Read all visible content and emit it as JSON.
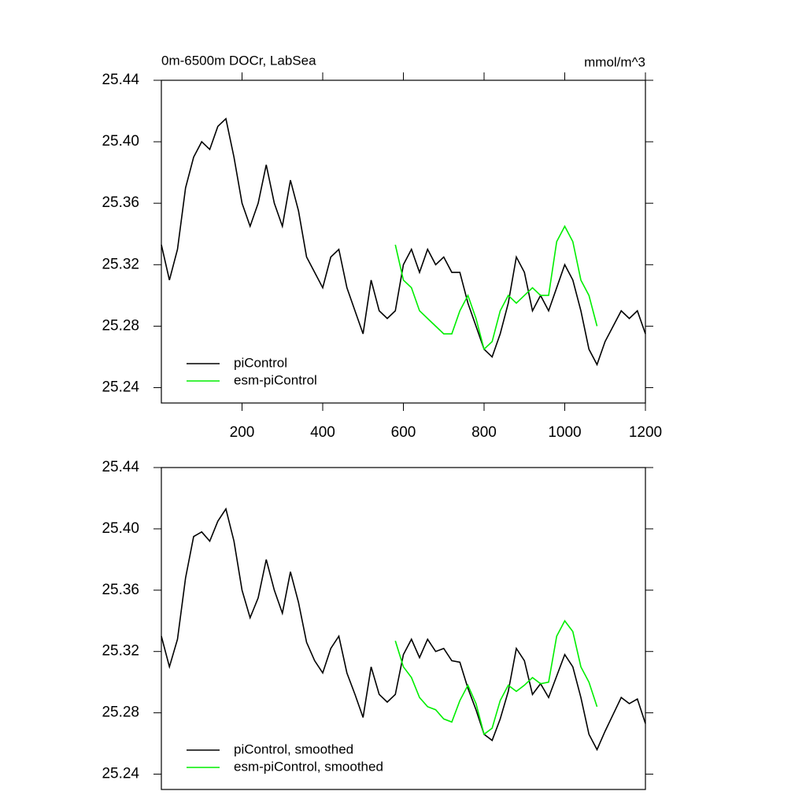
{
  "chart_data": [
    {
      "type": "line",
      "title": "0m-6500m DOCr, LabSea",
      "units": "mmol/m^3",
      "x": [
        0,
        20,
        40,
        60,
        80,
        100,
        120,
        140,
        160,
        180,
        200,
        220,
        240,
        260,
        280,
        300,
        320,
        340,
        360,
        380,
        400,
        420,
        440,
        460,
        480,
        500,
        520,
        540,
        560,
        580,
        600,
        620,
        640,
        660,
        680,
        700,
        720,
        740,
        760,
        780,
        800,
        820,
        840,
        860,
        880,
        900,
        920,
        940,
        960,
        980,
        1000,
        1020,
        1040,
        1060,
        1080,
        1100,
        1120,
        1140,
        1160,
        1180,
        1200
      ],
      "series": [
        {
          "name": "piControl",
          "color": "#000000",
          "values": [
            25.333,
            25.31,
            25.33,
            25.37,
            25.39,
            25.4,
            25.395,
            25.41,
            25.415,
            25.39,
            25.36,
            25.345,
            25.36,
            25.385,
            25.36,
            25.345,
            25.375,
            25.355,
            25.325,
            25.315,
            25.305,
            25.325,
            25.33,
            25.305,
            25.29,
            25.275,
            25.31,
            25.29,
            25.285,
            25.29,
            25.32,
            25.33,
            25.315,
            25.33,
            25.32,
            25.325,
            25.315,
            25.315,
            25.295,
            25.28,
            25.265,
            25.26,
            25.275,
            25.295,
            25.325,
            25.315,
            25.29,
            25.3,
            25.29,
            25.305,
            25.32,
            25.31,
            25.29,
            25.265,
            25.255,
            25.27,
            25.28,
            25.29,
            25.285,
            25.29,
            25.275
          ]
        },
        {
          "name": "esm-piControl",
          "color": "#00ee00",
          "values": [
            null,
            null,
            null,
            null,
            null,
            null,
            null,
            null,
            null,
            null,
            null,
            null,
            null,
            null,
            null,
            null,
            null,
            null,
            null,
            null,
            null,
            null,
            null,
            null,
            null,
            null,
            null,
            null,
            null,
            25.333,
            25.31,
            25.305,
            25.29,
            25.285,
            25.28,
            25.275,
            25.275,
            25.29,
            25.3,
            25.285,
            25.265,
            25.27,
            25.29,
            25.3,
            25.295,
            25.3,
            25.305,
            25.3,
            25.3,
            25.335,
            25.345,
            25.335,
            25.31,
            25.3,
            25.28,
            null,
            null,
            null,
            null,
            null,
            null
          ]
        }
      ],
      "xlim": [
        0,
        1200
      ],
      "xticks": [
        200,
        400,
        600,
        800,
        1000,
        1200
      ],
      "ylim": [
        25.23,
        25.44
      ],
      "yticks": [
        25.24,
        25.28,
        25.32,
        25.36,
        {
          "value": 25.4,
          "label": "25.40"
        },
        25.44
      ],
      "legend": "lower left"
    },
    {
      "type": "line",
      "x": [
        0,
        20,
        40,
        60,
        80,
        100,
        120,
        140,
        160,
        180,
        200,
        220,
        240,
        260,
        280,
        300,
        320,
        340,
        360,
        380,
        400,
        420,
        440,
        460,
        480,
        500,
        520,
        540,
        560,
        580,
        600,
        620,
        640,
        660,
        680,
        700,
        720,
        740,
        760,
        780,
        800,
        820,
        840,
        860,
        880,
        900,
        920,
        940,
        960,
        980,
        1000,
        1020,
        1040,
        1060,
        1080,
        1100,
        1120,
        1140,
        1160,
        1180,
        1200
      ],
      "series": [
        {
          "name": "piControl, smoothed",
          "color": "#000000",
          "values": [
            25.33,
            25.31,
            25.328,
            25.368,
            25.395,
            25.398,
            25.392,
            25.405,
            25.413,
            25.392,
            25.36,
            25.342,
            25.355,
            25.38,
            25.36,
            25.345,
            25.372,
            25.352,
            25.326,
            25.314,
            25.306,
            25.322,
            25.33,
            25.306,
            25.292,
            25.277,
            25.31,
            25.292,
            25.287,
            25.292,
            25.318,
            25.328,
            25.316,
            25.328,
            25.32,
            25.322,
            25.314,
            25.313,
            25.296,
            25.282,
            25.266,
            25.262,
            25.276,
            25.294,
            25.322,
            25.314,
            25.292,
            25.299,
            25.29,
            25.304,
            25.318,
            25.31,
            25.29,
            25.266,
            25.256,
            25.268,
            25.279,
            25.29,
            25.286,
            25.289,
            25.273
          ]
        },
        {
          "name": "esm-piControl, smoothed",
          "color": "#00ee00",
          "values": [
            null,
            null,
            null,
            null,
            null,
            null,
            null,
            null,
            null,
            null,
            null,
            null,
            null,
            null,
            null,
            null,
            null,
            null,
            null,
            null,
            null,
            null,
            null,
            null,
            null,
            null,
            null,
            null,
            null,
            25.327,
            25.31,
            25.303,
            25.29,
            25.284,
            25.282,
            25.276,
            25.274,
            25.288,
            25.298,
            25.286,
            25.266,
            25.27,
            25.288,
            25.298,
            25.294,
            25.298,
            25.303,
            25.299,
            25.3,
            25.33,
            25.34,
            25.333,
            25.31,
            25.3,
            25.284,
            null,
            null,
            null,
            null,
            null,
            null
          ]
        }
      ],
      "xlim": [
        0,
        1200
      ],
      "ylim": [
        25.23,
        25.44
      ],
      "yticks": [
        25.24,
        25.28,
        25.32,
        25.36,
        {
          "value": 25.4,
          "label": "25.40"
        },
        25.44
      ],
      "legend": "lower left"
    }
  ]
}
